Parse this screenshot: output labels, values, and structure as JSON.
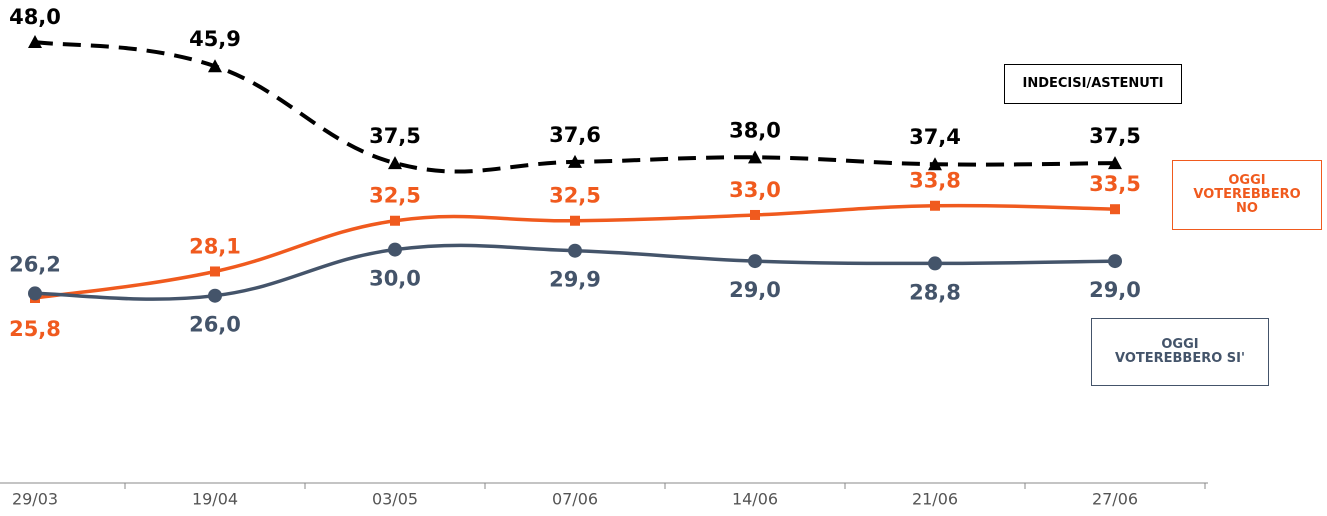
{
  "chart_data": {
    "type": "line",
    "categories": [
      "29/03",
      "19/04",
      "03/05",
      "07/06",
      "14/06",
      "21/06",
      "27/06"
    ],
    "series": [
      {
        "name": "INDECISI/ASTENUTI",
        "color": "#000000",
        "values": [
          48.0,
          45.9,
          37.5,
          37.6,
          38.0,
          37.4,
          37.5
        ],
        "value_labels": [
          "48,0",
          "45,9",
          "37,5",
          "37,6",
          "38,0",
          "37,4",
          "37,5"
        ]
      },
      {
        "name": "OGGI VOTEREBBERO NO",
        "color": "#f05a1e",
        "values": [
          25.8,
          28.1,
          32.5,
          32.5,
          33.0,
          33.8,
          33.5
        ],
        "value_labels": [
          "25,8",
          "28,1",
          "32,5",
          "32,5",
          "33,0",
          "33,8",
          "33,5"
        ]
      },
      {
        "name": "OGGI VOTEREBBERO SI'",
        "color": "#44546a",
        "values": [
          26.2,
          26.0,
          30.0,
          29.9,
          29.0,
          28.8,
          29.0
        ],
        "value_labels": [
          "26,2",
          "26,0",
          "30,0",
          "29,9",
          "29,0",
          "28,8",
          "29,0"
        ]
      }
    ]
  }
}
